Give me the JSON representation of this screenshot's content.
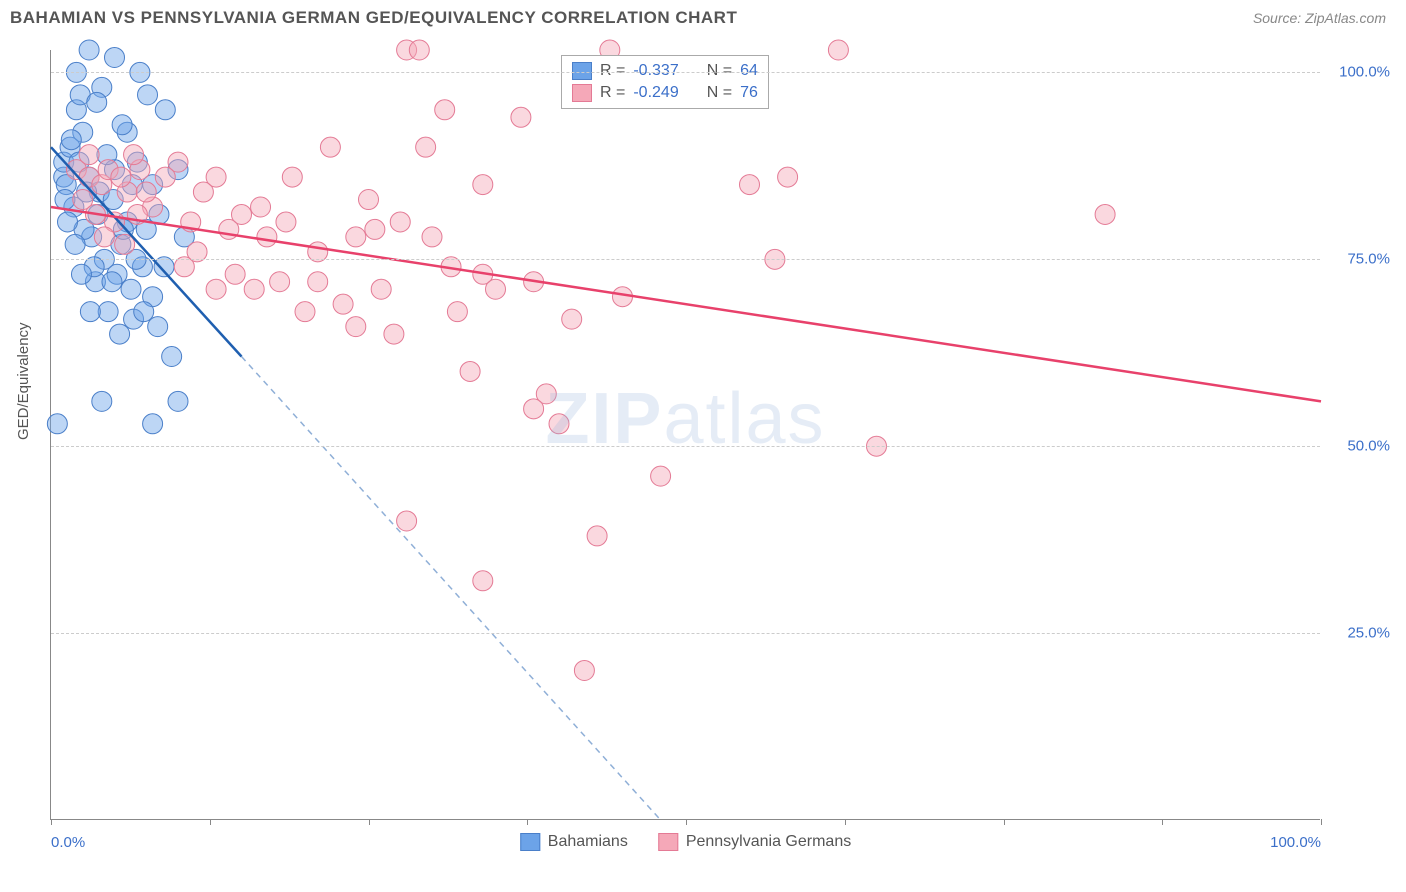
{
  "header": {
    "title": "BAHAMIAN VS PENNSYLVANIA GERMAN GED/EQUIVALENCY CORRELATION CHART",
    "source": "Source: ZipAtlas.com"
  },
  "watermark": {
    "prefix": "ZIP",
    "suffix": "atlas"
  },
  "chart": {
    "type": "scatter",
    "ylabel": "GED/Equivalency",
    "xlim": [
      0,
      100
    ],
    "ylim": [
      0,
      103
    ],
    "xtick_positions": [
      0,
      12.5,
      25,
      37.5,
      50,
      62.5,
      75,
      87.5,
      100
    ],
    "xtick_labels": {
      "0": "0.0%",
      "100": "100.0%"
    },
    "yticks": [
      25,
      50,
      75,
      100
    ],
    "ytick_labels": [
      "25.0%",
      "50.0%",
      "75.0%",
      "100.0%"
    ],
    "grid_color": "#cccccc",
    "axis_color": "#888888",
    "tick_color": "#3b6fc9",
    "background": "#ffffff",
    "marker_radius": 10,
    "marker_opacity": 0.45,
    "line_width": 2.5,
    "series": [
      {
        "name": "Bahamians",
        "color": "#6ca3e8",
        "stroke": "#4a7fc9",
        "line_color": "#1f5fb0",
        "R": "-0.337",
        "N": "64",
        "trend": {
          "x1": 0,
          "y1": 90,
          "x2_solid": 15,
          "y2_solid": 62,
          "x2_dash": 48,
          "y2_dash": 0
        },
        "points": [
          [
            1,
            86
          ],
          [
            1,
            88
          ],
          [
            1.2,
            85
          ],
          [
            1.5,
            90
          ],
          [
            2,
            95
          ],
          [
            2,
            100
          ],
          [
            2.3,
            97
          ],
          [
            2.5,
            92
          ],
          [
            3,
            103
          ],
          [
            3,
            86
          ],
          [
            3.2,
            78
          ],
          [
            3.5,
            72
          ],
          [
            3.8,
            84
          ],
          [
            4,
            98
          ],
          [
            4.2,
            75
          ],
          [
            4.5,
            68
          ],
          [
            5,
            102
          ],
          [
            5,
            87
          ],
          [
            5.2,
            73
          ],
          [
            5.5,
            77
          ],
          [
            6,
            80
          ],
          [
            6,
            92
          ],
          [
            6.5,
            67
          ],
          [
            7,
            100
          ],
          [
            7.2,
            74
          ],
          [
            7.5,
            79
          ],
          [
            8,
            85
          ],
          [
            8,
            70
          ],
          [
            8.5,
            81
          ],
          [
            9,
            95
          ],
          [
            9.5,
            62
          ],
          [
            10,
            87
          ],
          [
            10.5,
            78
          ],
          [
            1.8,
            82
          ],
          [
            2.6,
            79
          ],
          [
            3.1,
            68
          ],
          [
            4.8,
            72
          ],
          [
            5.6,
            93
          ],
          [
            6.3,
            71
          ],
          [
            6.8,
            88
          ],
          [
            7.6,
            97
          ],
          [
            8.4,
            66
          ],
          [
            2.2,
            88
          ],
          [
            1.6,
            91
          ],
          [
            4.4,
            89
          ],
          [
            3.6,
            96
          ],
          [
            5.4,
            65
          ],
          [
            6.7,
            75
          ],
          [
            1.1,
            83
          ],
          [
            1.3,
            80
          ],
          [
            2.8,
            84
          ],
          [
            3.4,
            74
          ],
          [
            10,
            56
          ],
          [
            4,
            56
          ],
          [
            0.5,
            53
          ],
          [
            8,
            53
          ],
          [
            1.9,
            77
          ],
          [
            2.4,
            73
          ],
          [
            3.7,
            81
          ],
          [
            4.9,
            83
          ],
          [
            5.7,
            79
          ],
          [
            6.4,
            85
          ],
          [
            7.3,
            68
          ],
          [
            8.9,
            74
          ]
        ]
      },
      {
        "name": "Pennsylvania Germans",
        "color": "#f5a8b8",
        "stroke": "#e47a95",
        "line_color": "#e8416b",
        "R": "-0.249",
        "N": "76",
        "trend": {
          "x1": 0,
          "y1": 82,
          "x2_solid": 100,
          "y2_solid": 56,
          "x2_dash": 100,
          "y2_dash": 56
        },
        "points": [
          [
            2,
            87
          ],
          [
            3,
            86
          ],
          [
            4,
            85
          ],
          [
            5,
            80
          ],
          [
            6,
            84
          ],
          [
            7,
            87
          ],
          [
            8,
            82
          ],
          [
            10,
            88
          ],
          [
            11,
            80
          ],
          [
            12,
            84
          ],
          [
            13,
            71
          ],
          [
            14,
            79
          ],
          [
            15,
            81
          ],
          [
            16,
            71
          ],
          [
            17,
            78
          ],
          [
            18,
            72
          ],
          [
            19,
            86
          ],
          [
            20,
            68
          ],
          [
            21,
            72
          ],
          [
            22,
            90
          ],
          [
            24,
            78
          ],
          [
            24,
            66
          ],
          [
            25,
            83
          ],
          [
            26,
            71
          ],
          [
            27,
            65
          ],
          [
            28,
            103
          ],
          [
            29,
            103
          ],
          [
            30,
            78
          ],
          [
            31,
            95
          ],
          [
            32,
            68
          ],
          [
            33,
            60
          ],
          [
            34,
            85
          ],
          [
            34,
            73
          ],
          [
            35,
            71
          ],
          [
            37,
            94
          ],
          [
            38,
            72
          ],
          [
            39,
            57
          ],
          [
            40,
            53
          ],
          [
            41,
            67
          ],
          [
            42,
            20
          ],
          [
            43,
            38
          ],
          [
            44,
            103
          ],
          [
            45,
            70
          ],
          [
            48,
            46
          ],
          [
            55,
            85
          ],
          [
            57,
            75
          ],
          [
            58,
            86
          ],
          [
            62,
            103
          ],
          [
            65,
            50
          ],
          [
            83,
            81
          ],
          [
            3,
            89
          ],
          [
            4.5,
            87
          ],
          [
            6.5,
            89
          ],
          [
            5.5,
            86
          ],
          [
            7.5,
            84
          ],
          [
            9,
            86
          ],
          [
            10.5,
            74
          ],
          [
            11.5,
            76
          ],
          [
            13,
            86
          ],
          [
            14.5,
            73
          ],
          [
            16.5,
            82
          ],
          [
            18.5,
            80
          ],
          [
            21,
            76
          ],
          [
            23,
            69
          ],
          [
            25.5,
            79
          ],
          [
            27.5,
            80
          ],
          [
            29.5,
            90
          ],
          [
            31.5,
            74
          ],
          [
            28,
            40
          ],
          [
            34,
            32
          ],
          [
            38,
            55
          ],
          [
            2.5,
            83
          ],
          [
            3.5,
            81
          ],
          [
            4.2,
            78
          ],
          [
            5.8,
            77
          ],
          [
            6.8,
            81
          ]
        ]
      }
    ]
  },
  "stats_box": {
    "label_R": "R =",
    "label_N": "N ="
  },
  "legend": {
    "items": [
      "Bahamians",
      "Pennsylvania Germans"
    ]
  }
}
